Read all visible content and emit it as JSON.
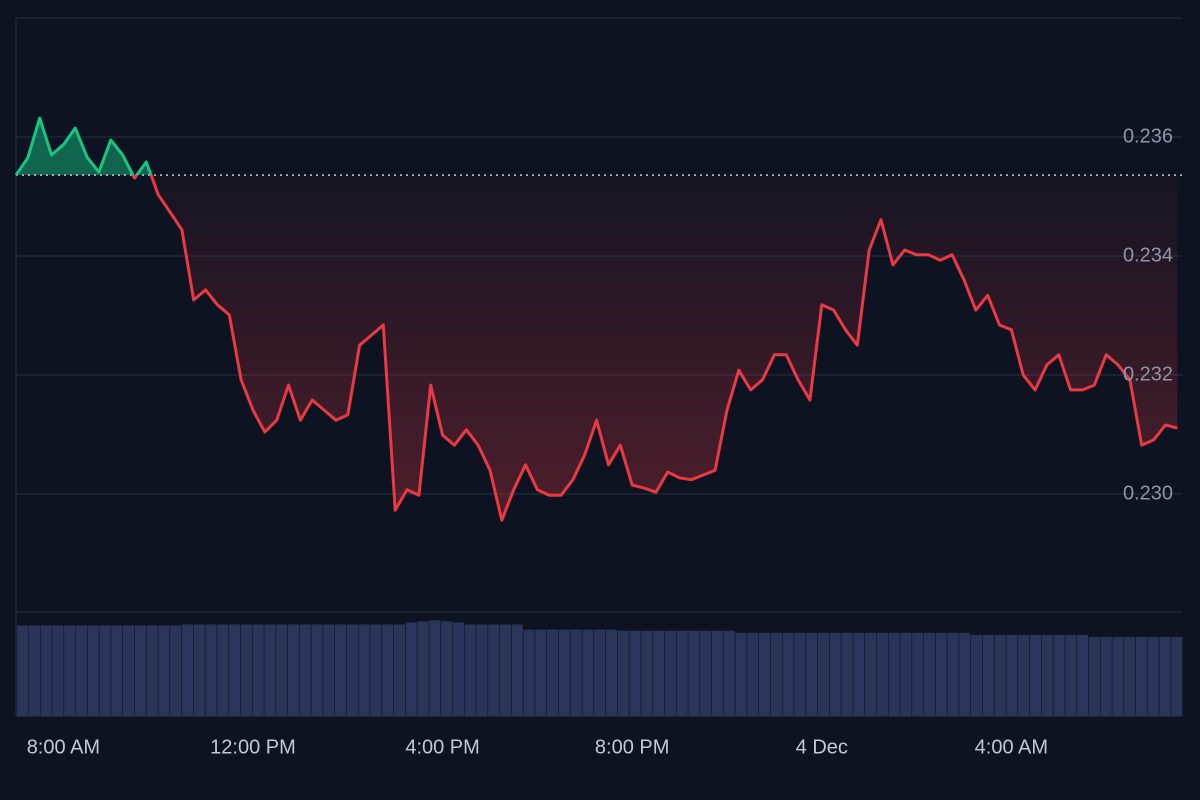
{
  "chart_data": {
    "type": "line",
    "x": [
      7.0,
      7.25,
      7.5,
      7.75,
      8.0,
      8.25,
      8.5,
      8.75,
      9.0,
      9.25,
      9.5,
      9.75,
      10.0,
      10.25,
      10.5,
      10.75,
      11.0,
      11.25,
      11.5,
      11.75,
      12.0,
      12.25,
      12.5,
      12.75,
      13.0,
      13.25,
      13.5,
      13.75,
      14.0,
      14.25,
      14.5,
      14.75,
      15.0,
      15.25,
      15.5,
      15.75,
      16.0,
      16.25,
      16.5,
      16.75,
      17.0,
      17.25,
      17.5,
      17.75,
      18.0,
      18.25,
      18.5,
      18.75,
      19.0,
      19.25,
      19.5,
      19.75,
      20.0,
      20.25,
      20.5,
      20.75,
      21.0,
      21.25,
      21.5,
      21.75,
      22.0,
      22.25,
      22.5,
      22.75,
      23.0,
      23.25,
      23.5,
      23.75,
      24.0,
      24.25,
      24.5,
      24.75,
      25.0,
      25.25,
      25.5,
      25.75,
      26.0,
      26.25,
      26.5,
      26.75,
      27.0,
      27.25,
      27.5,
      27.75,
      28.0,
      28.25,
      28.5,
      28.75,
      29.0,
      29.25,
      29.5,
      29.75,
      30.0,
      30.25,
      30.5,
      30.75,
      31.0,
      31.25,
      31.5
    ],
    "values": [
      0.23536,
      0.23565,
      0.23632,
      0.2357,
      0.23587,
      0.23615,
      0.23566,
      0.23541,
      0.23595,
      0.2357,
      0.23531,
      0.23558,
      0.23503,
      0.23474,
      0.23444,
      0.23326,
      0.23343,
      0.23318,
      0.23301,
      0.23192,
      0.23141,
      0.23104,
      0.23124,
      0.23183,
      0.23124,
      0.23158,
      0.23141,
      0.23124,
      0.23133,
      0.2325,
      0.23267,
      0.23284,
      0.22973,
      0.23007,
      0.22998,
      0.23183,
      0.23099,
      0.23082,
      0.23108,
      0.23082,
      0.2304,
      0.22956,
      0.23007,
      0.23049,
      0.23007,
      0.22998,
      0.22998,
      0.23024,
      0.23066,
      0.23124,
      0.23049,
      0.23082,
      0.23015,
      0.2301,
      0.23003,
      0.23037,
      0.23027,
      0.23024,
      0.23032,
      0.2304,
      0.23141,
      0.23208,
      0.23175,
      0.23192,
      0.23234,
      0.23234,
      0.23192,
      0.23158,
      0.23318,
      0.23309,
      0.23276,
      0.2325,
      0.2341,
      0.23461,
      0.23385,
      0.2341,
      0.23402,
      0.23402,
      0.23393,
      0.23402,
      0.2336,
      0.23309,
      0.23334,
      0.23284,
      0.23276,
      0.232,
      0.23175,
      0.23217,
      0.23234,
      0.23175,
      0.23175,
      0.23183,
      0.23234,
      0.23217,
      0.23192,
      0.23082,
      0.23091,
      0.23116,
      0.23111
    ],
    "baseline": 0.23536,
    "up_color": "#16c784",
    "down_color": "#ea3943",
    "xlim": [
      7.0,
      31.6
    ],
    "xticks": [
      {
        "value": 8,
        "label": "8:00 AM"
      },
      {
        "value": 12,
        "label": "12:00 PM"
      },
      {
        "value": 16,
        "label": "4:00 PM"
      },
      {
        "value": 20,
        "label": "8:00 PM"
      },
      {
        "value": 24,
        "label": "4 Dec"
      },
      {
        "value": 28,
        "label": "4:00 AM"
      }
    ],
    "ylim": [
      0.228,
      0.238
    ],
    "yticks": [
      0.236,
      0.234,
      0.232,
      {
        "value": 0.23,
        "label": "0.230"
      }
    ],
    "grid": true,
    "volume": {
      "color": "#2b3459",
      "ylim": [
        0,
        100
      ],
      "values": [
        87,
        87,
        87,
        87,
        87,
        87,
        87,
        87,
        87,
        87,
        87,
        87,
        87,
        87,
        88,
        88,
        88,
        88,
        88,
        88,
        88,
        88,
        88,
        88,
        88,
        88,
        88,
        88,
        88,
        88,
        88,
        88,
        88,
        90,
        91,
        92,
        91,
        90,
        88,
        88,
        88,
        88,
        88,
        83,
        83,
        83,
        83,
        83,
        83,
        83,
        83,
        82,
        82,
        82,
        82,
        82,
        82,
        82,
        82,
        82,
        82,
        80,
        80,
        80,
        80,
        80,
        80,
        80,
        80,
        80,
        80,
        80,
        80,
        80,
        80,
        80,
        80,
        80,
        80,
        80,
        80,
        78,
        78,
        78,
        78,
        78,
        78,
        78,
        78,
        78,
        78,
        76,
        76,
        76,
        76,
        76,
        76,
        76,
        76
      ]
    }
  }
}
